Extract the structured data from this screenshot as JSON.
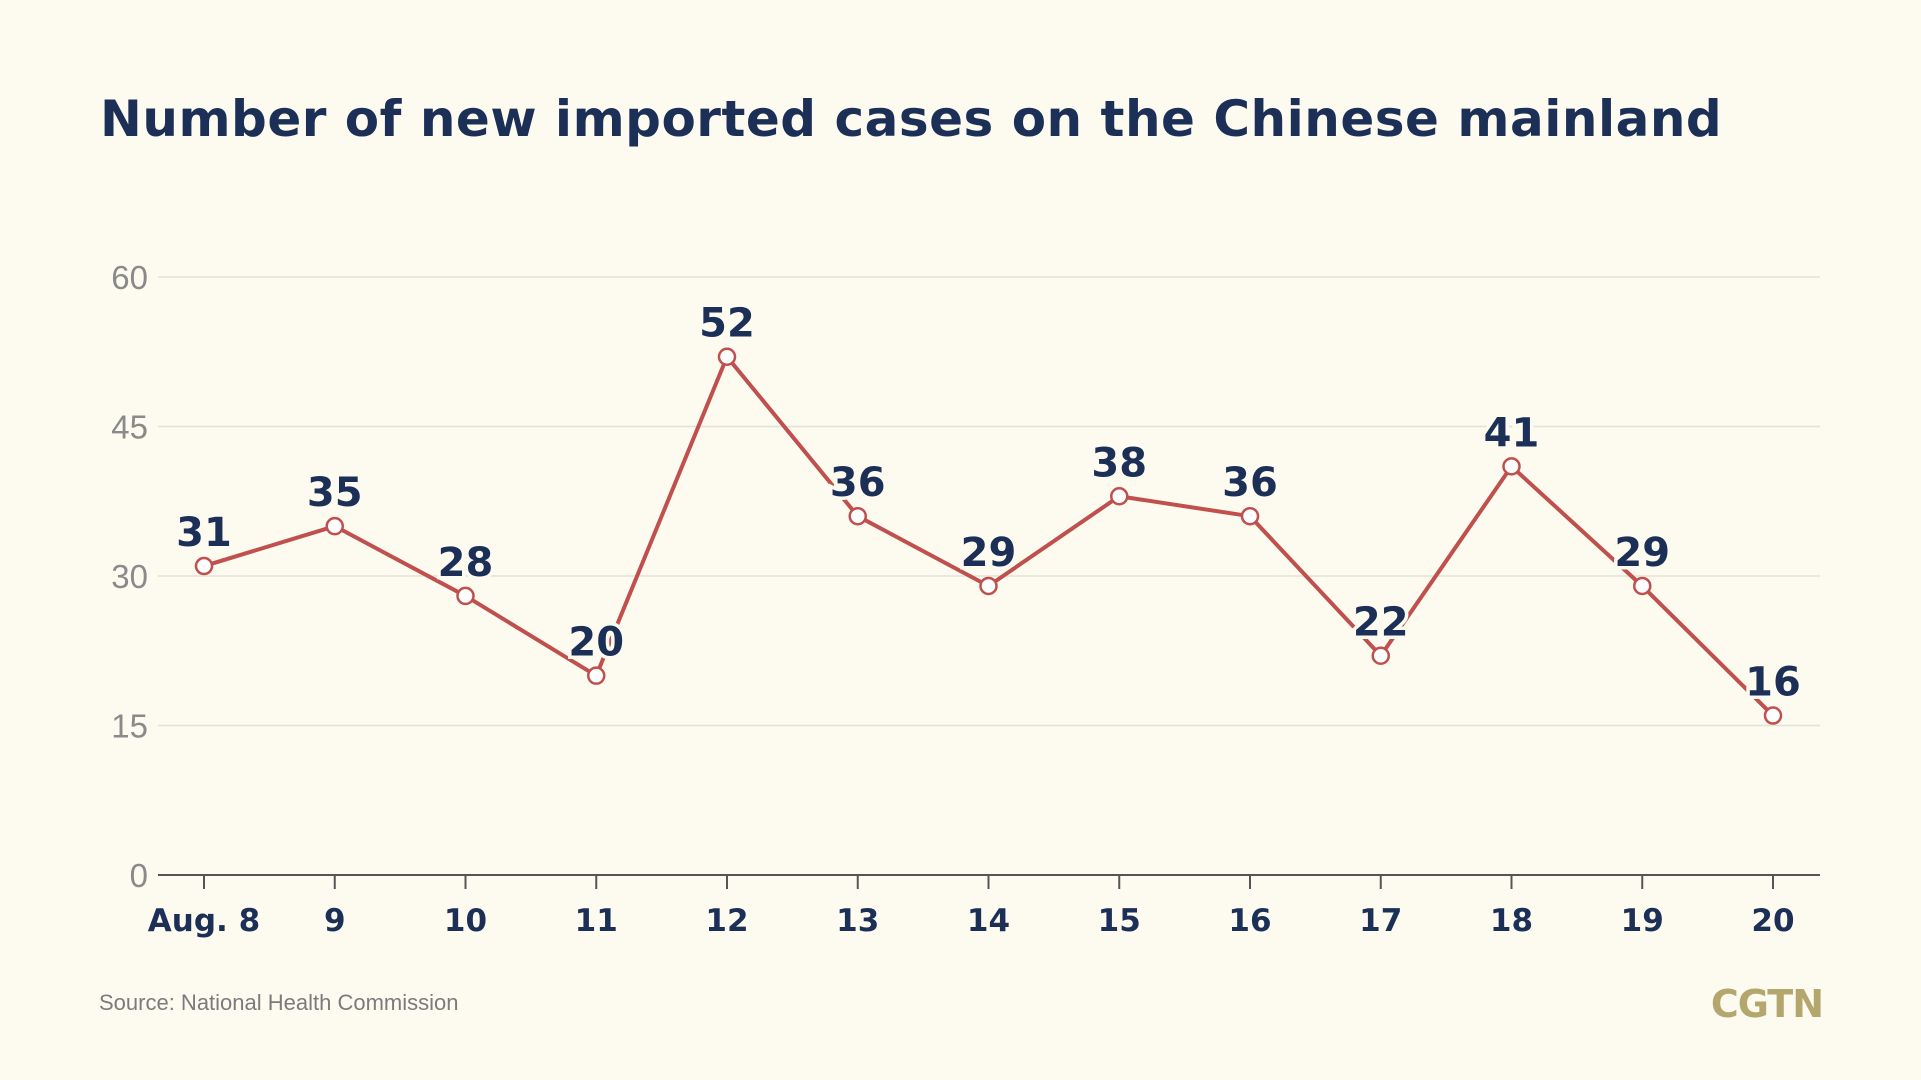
{
  "chart_data": {
    "type": "line",
    "title": "Number of new imported cases on the Chinese mainland",
    "categories": [
      "Aug. 8",
      "9",
      "10",
      "11",
      "12",
      "13",
      "14",
      "15",
      "16",
      "17",
      "18",
      "19",
      "20"
    ],
    "series": [
      {
        "values": [
          31,
          35,
          28,
          20,
          52,
          36,
          29,
          38,
          36,
          22,
          41,
          29,
          16
        ],
        "color": "#c0504d"
      }
    ],
    "data_labels": [
      "31",
      "35",
      "28",
      "20",
      "52",
      "36",
      "29",
      "38",
      "36",
      "22",
      "41",
      "29",
      "16"
    ],
    "ylim": [
      0,
      60
    ],
    "yticks": [
      0,
      15,
      30,
      45,
      60
    ],
    "ytick_labels": [
      "0",
      "15",
      "30",
      "45",
      "60"
    ],
    "grid": true,
    "xlabel": "",
    "ylabel": ""
  },
  "footer": {
    "source": "Source: National Health Commission",
    "brand": "CGTN"
  },
  "colors": {
    "background": "#fdfaf0",
    "title": "#1b2f57",
    "line": "#c0504d",
    "grid": "#e4e2d6",
    "brand": "#b3a76d"
  }
}
